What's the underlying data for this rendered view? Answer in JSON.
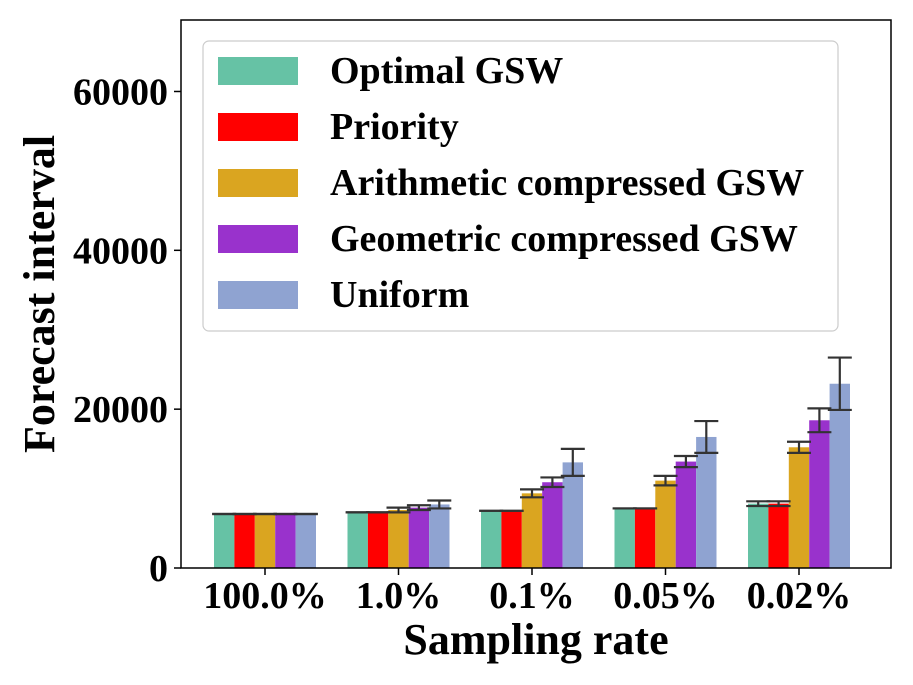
{
  "chart_data": {
    "type": "bar",
    "title": "",
    "xlabel": "Sampling rate",
    "ylabel": "Forecast interval",
    "categories": [
      "100.0%",
      "1.0%",
      "0.1%",
      "0.05%",
      "0.02%"
    ],
    "ylim": [
      0,
      69000
    ],
    "yticks": [
      0,
      20000,
      40000,
      60000
    ],
    "ytick_labels": [
      "0",
      "20000",
      "40000",
      "60000"
    ],
    "grid": false,
    "legend_position": "top",
    "series": [
      {
        "name": "Optimal GSW",
        "color": "#66c2a5",
        "values": [
          6800,
          7000,
          7200,
          7500,
          8100
        ],
        "errors": [
          0,
          0,
          0,
          0,
          300
        ]
      },
      {
        "name": "Priority",
        "color": "#ff0000",
        "values": [
          6800,
          7000,
          7200,
          7500,
          8100
        ],
        "errors": [
          0,
          0,
          0,
          0,
          300
        ]
      },
      {
        "name": "Arithmetic compressed GSW",
        "color": "#daa520",
        "values": [
          6800,
          7300,
          9400,
          11000,
          15200
        ],
        "errors": [
          0,
          300,
          500,
          600,
          700
        ]
      },
      {
        "name": "Geometric compressed GSW",
        "color": "#9932cc",
        "values": [
          6800,
          7600,
          10800,
          13400,
          18600
        ],
        "errors": [
          0,
          300,
          600,
          700,
          1500
        ]
      },
      {
        "name": "Uniform",
        "color": "#8fa3d1",
        "values": [
          6800,
          8000,
          13300,
          16500,
          23200
        ],
        "errors": [
          0,
          500,
          1700,
          2000,
          3300
        ]
      }
    ]
  }
}
